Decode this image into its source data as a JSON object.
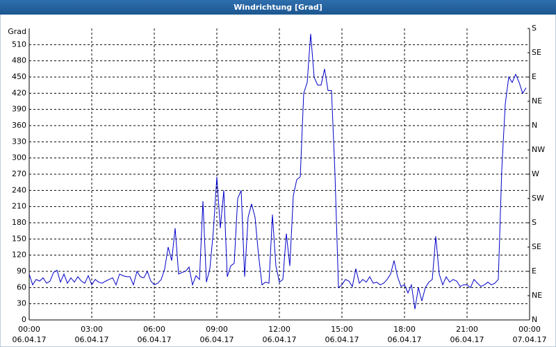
{
  "chart_data": {
    "type": "line",
    "title": "Windrichtung [Grad]",
    "ylabel": "Grad",
    "x": [
      0,
      10,
      20,
      30,
      40,
      50,
      60,
      70,
      80,
      90,
      100,
      110,
      120,
      130,
      140,
      150,
      160,
      170,
      180,
      190,
      200,
      210,
      220,
      230,
      240,
      250,
      260,
      270,
      280,
      290,
      300,
      310,
      320,
      330,
      340,
      350,
      360,
      370,
      380,
      390,
      400,
      410,
      420,
      430,
      440,
      450,
      460,
      470,
      480,
      490,
      500,
      510,
      520,
      530,
      540,
      550,
      560,
      570,
      580,
      590,
      600,
      610,
      620,
      630,
      640,
      650,
      660,
      670,
      680,
      690,
      700,
      710,
      720,
      730,
      740,
      750,
      760,
      770,
      780,
      790,
      800,
      810,
      820,
      830,
      840,
      850,
      860,
      870,
      880,
      890,
      900,
      910,
      920,
      930,
      940,
      950,
      960,
      970,
      980,
      990,
      1000,
      1010,
      1020,
      1030,
      1040,
      1050,
      1060,
      1070,
      1080,
      1090,
      1100,
      1110,
      1120,
      1130,
      1140,
      1150,
      1160,
      1170,
      1180,
      1190,
      1200,
      1210,
      1220,
      1230,
      1240,
      1250,
      1260,
      1270,
      1280,
      1290,
      1300,
      1310,
      1320,
      1330,
      1340,
      1350,
      1360,
      1370,
      1380,
      1390,
      1400,
      1410,
      1420,
      1430
    ],
    "series": [
      {
        "color": "#0000c8",
        "values": [
          85,
          65,
          75,
          72,
          78,
          68,
          72,
          88,
          92,
          70,
          85,
          68,
          78,
          70,
          80,
          72,
          68,
          82,
          65,
          75,
          70,
          68,
          72,
          75,
          78,
          65,
          85,
          82,
          80,
          80,
          65,
          90,
          80,
          78,
          90,
          72,
          65,
          68,
          75,
          95,
          135,
          110,
          170,
          85,
          88,
          90,
          98,
          65,
          82,
          75,
          220,
          70,
          95,
          165,
          265,
          170,
          240,
          80,
          100,
          105,
          225,
          240,
          80,
          190,
          215,
          190,
          120,
          65,
          70,
          68,
          195,
          100,
          70,
          75,
          160,
          100,
          230,
          260,
          265,
          420,
          440,
          530,
          450,
          435,
          435,
          465,
          425,
          425,
          270,
          60,
          65,
          75,
          72,
          62,
          95,
          68,
          75,
          70,
          80,
          68,
          70,
          65,
          68,
          75,
          85,
          110,
          80,
          62,
          65,
          50,
          65,
          20,
          60,
          35,
          60,
          70,
          75,
          155,
          85,
          65,
          80,
          70,
          75,
          72,
          62,
          65,
          65,
          60,
          75,
          68,
          62,
          65,
          70,
          65,
          68,
          75,
          280,
          400,
          450,
          440,
          455,
          440,
          420,
          430
        ]
      }
    ],
    "xlim": [
      0,
      1440
    ],
    "xticks": [
      {
        "value": 0,
        "label": "00:00"
      },
      {
        "value": 180,
        "label": "03:00"
      },
      {
        "value": 360,
        "label": "06:00"
      },
      {
        "value": 540,
        "label": "09:00"
      },
      {
        "value": 720,
        "label": "12:00"
      },
      {
        "value": 900,
        "label": "15:00"
      },
      {
        "value": 1080,
        "label": "18:00"
      },
      {
        "value": 1260,
        "label": "21:00"
      },
      {
        "value": 1440,
        "label": "00:00"
      }
    ],
    "xtick_dates": [
      "06.04.17",
      "06.04.17",
      "06.04.17",
      "06.04.17",
      "06.04.17",
      "06.04.17",
      "06.04.17",
      "06.04.17",
      "07.04.17"
    ],
    "ylim": [
      0,
      540
    ],
    "yticks": [
      0,
      30,
      60,
      90,
      120,
      150,
      180,
      210,
      240,
      270,
      300,
      330,
      360,
      390,
      420,
      450,
      480,
      510
    ],
    "y2lim": [
      0,
      540
    ],
    "y2ticks": [
      {
        "value": 540,
        "label": "S"
      },
      {
        "value": 495,
        "label": "SE"
      },
      {
        "value": 450,
        "label": "E"
      },
      {
        "value": 405,
        "label": "NE"
      },
      {
        "value": 360,
        "label": "N"
      },
      {
        "value": 315,
        "label": "NW"
      },
      {
        "value": 270,
        "label": "W"
      },
      {
        "value": 225,
        "label": "SW"
      },
      {
        "value": 180,
        "label": "S"
      },
      {
        "value": 135,
        "label": "SE"
      },
      {
        "value": 90,
        "label": "E"
      },
      {
        "value": 45,
        "label": "NE"
      },
      {
        "value": 0,
        "label": "N"
      }
    ],
    "grid": true
  }
}
